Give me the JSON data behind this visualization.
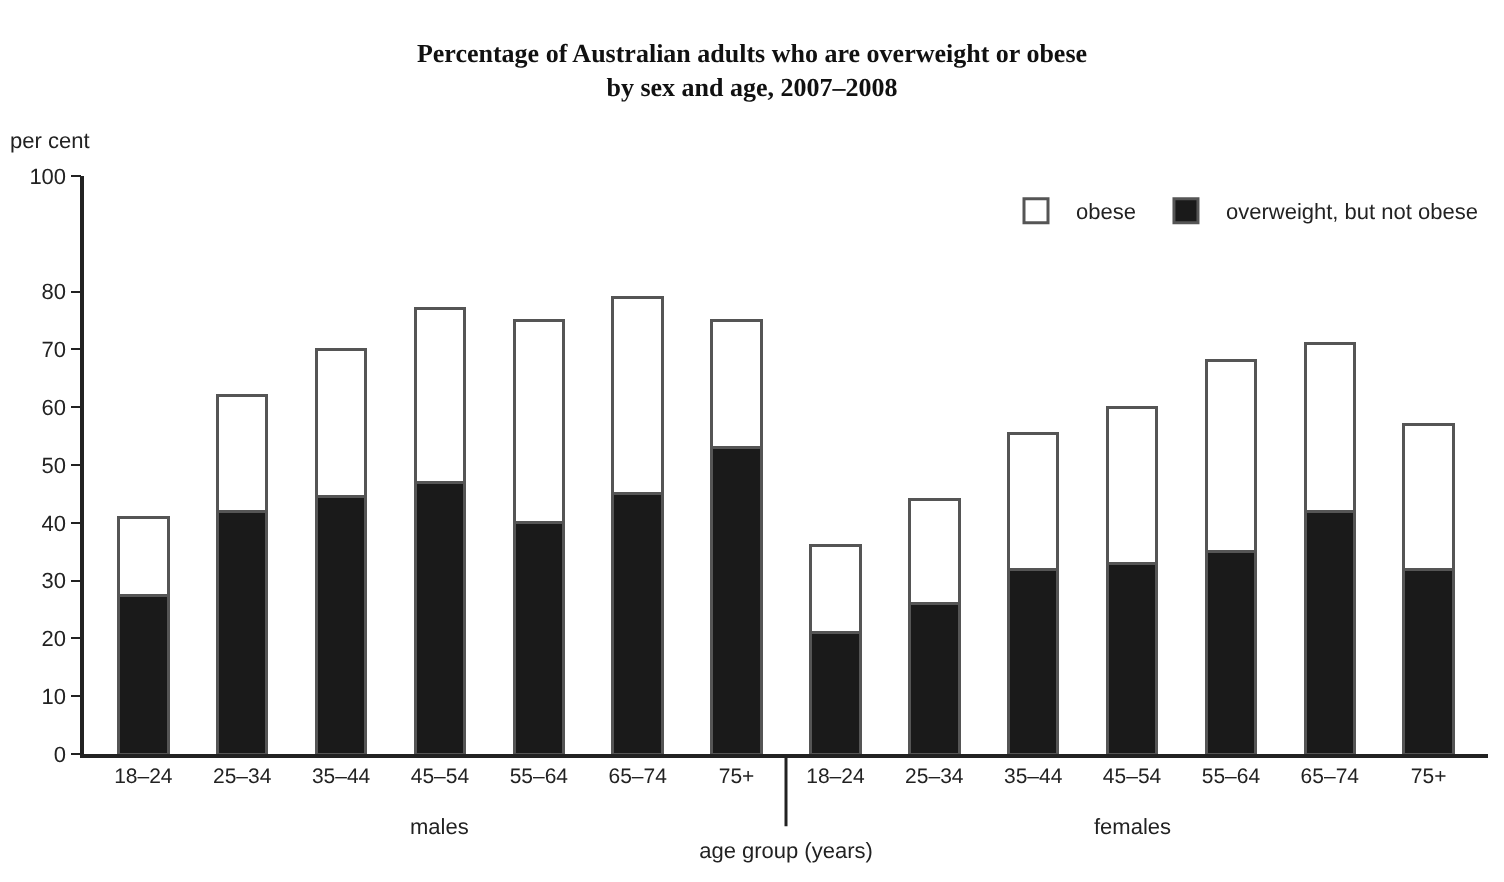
{
  "chart_data": {
    "type": "bar",
    "title": "Percentage of Australian adults who are overweight or obese\nby sex and age, 2007–2008",
    "xlabel": "age group (years)",
    "ylabel": "per cent",
    "categories": [
      "18–24",
      "25–34",
      "35–44",
      "45–54",
      "55–64",
      "65–74",
      "75+",
      "18–24",
      "25–34",
      "35–44",
      "45–54",
      "55–64",
      "65–74",
      "75+"
    ],
    "stacked": true,
    "series": [
      {
        "name": "overweight, but not obese",
        "color": "#1a1a1a",
        "values": [
          27.5,
          42,
          44.5,
          47,
          40,
          45,
          53,
          21,
          26,
          32,
          33,
          35,
          42,
          32
        ]
      },
      {
        "name": "obese",
        "color": "#ffffff",
        "values": [
          13.5,
          20,
          25.5,
          30,
          35,
          34,
          22,
          15,
          18,
          23.5,
          27,
          33,
          29,
          25
        ]
      }
    ],
    "ylim": [
      0,
      100
    ],
    "yticks": [
      0,
      10,
      20,
      30,
      40,
      50,
      60,
      70,
      80,
      100
    ],
    "annotations": [
      "males",
      "females"
    ],
    "grid": false,
    "legend": "top right"
  }
}
